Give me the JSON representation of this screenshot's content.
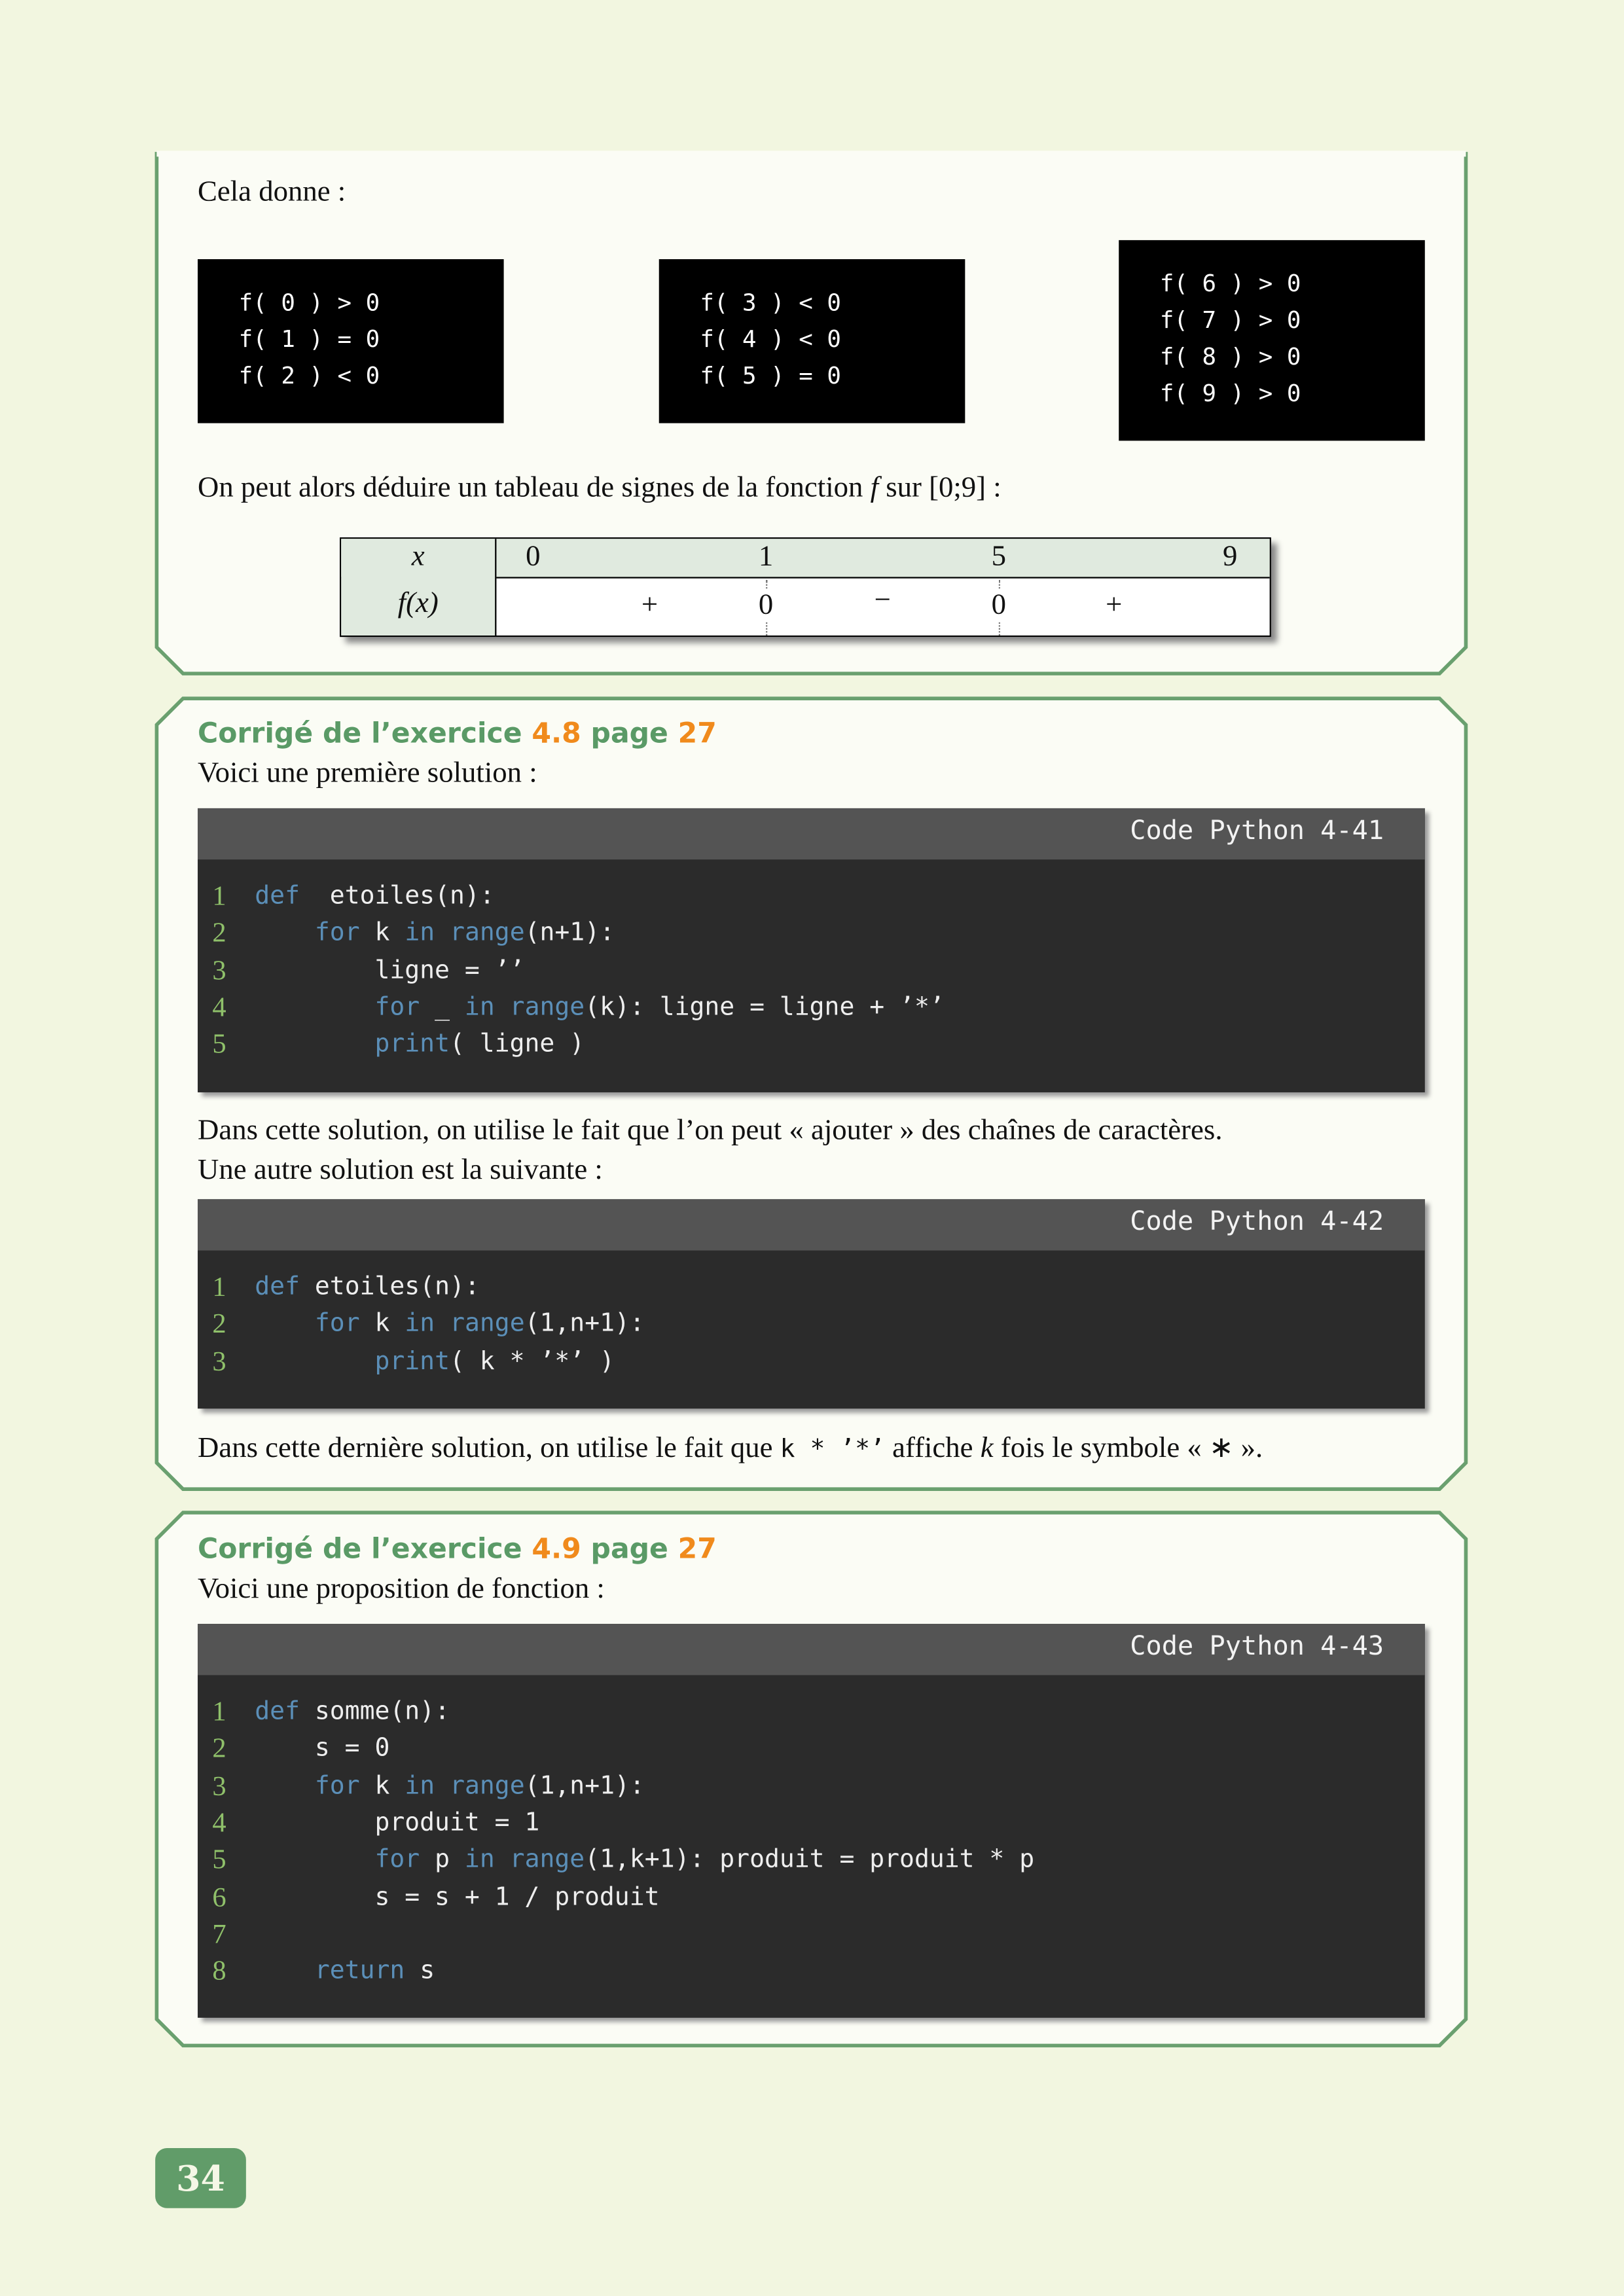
{
  "colors": {
    "background": "#f2f6e0",
    "box_border": "#6aa06f",
    "title_green": "#5a9a66",
    "title_orange": "#f08a1c",
    "code_bg": "#2b2b2b",
    "code_header": "#545454",
    "keyword": "#5b8fb8",
    "line_number": "#8fc06a"
  },
  "section1": {
    "intro": "Cela donne :",
    "outputs": [
      [
        "f( 0 ) > 0",
        "f( 1 ) = 0",
        "f( 2 ) < 0"
      ],
      [
        "f( 3 ) < 0",
        "f( 4 ) < 0",
        "f( 5 ) = 0"
      ],
      [
        "f( 6 ) > 0",
        "f( 7 ) > 0",
        "f( 8 ) > 0",
        "f( 9 ) > 0"
      ]
    ],
    "sentence_pre": "On peut alors déduire un tableau de signes de la fonction ",
    "sentence_f": "f",
    "sentence_post": " sur [0;9] :",
    "table": {
      "x_label": "x",
      "fx_label": "f(x)",
      "x_values": [
        "0",
        "1",
        "5",
        "9"
      ],
      "signs": [
        "+",
        "0",
        "−",
        "0",
        "+"
      ]
    }
  },
  "section2": {
    "title_pre": "Corrigé de l’exercice ",
    "exercise": "4.8",
    "title_mid": " page ",
    "page": "27",
    "intro": "Voici une première solution :",
    "code1": {
      "header": "Code Python 4-41",
      "lines": [
        [
          [
            "kw",
            "def"
          ],
          [
            "",
            "  etoiles(n):"
          ]
        ],
        [
          [
            "",
            "    "
          ],
          [
            "kw",
            "for"
          ],
          [
            "",
            " k "
          ],
          [
            "kw",
            "in"
          ],
          [
            "",
            " "
          ],
          [
            "kw",
            "range"
          ],
          [
            "",
            "(n+1):"
          ]
        ],
        [
          [
            "",
            "        ligne = ’’"
          ]
        ],
        [
          [
            "",
            "        "
          ],
          [
            "kw",
            "for"
          ],
          [
            "",
            " _ "
          ],
          [
            "kw",
            "in"
          ],
          [
            "",
            " "
          ],
          [
            "kw",
            "range"
          ],
          [
            "",
            "(k): ligne = ligne + ’*’"
          ]
        ],
        [
          [
            "",
            "        "
          ],
          [
            "kw",
            "print"
          ],
          [
            "",
            "( ligne )"
          ]
        ]
      ]
    },
    "text1": "Dans cette solution, on utilise le fait que l’on peut « ajouter » des chaînes de caractères.",
    "text2": "Une autre solution est la suivante :",
    "code2": {
      "header": "Code Python 4-42",
      "lines": [
        [
          [
            "kw",
            "def"
          ],
          [
            "",
            " etoiles(n):"
          ]
        ],
        [
          [
            "",
            "    "
          ],
          [
            "kw",
            "for"
          ],
          [
            "",
            " k "
          ],
          [
            "kw",
            "in"
          ],
          [
            "",
            " "
          ],
          [
            "kw",
            "range"
          ],
          [
            "",
            "(1,n+1):"
          ]
        ],
        [
          [
            "",
            "        "
          ],
          [
            "kw",
            "print"
          ],
          [
            "",
            "( k * ’*’ )"
          ]
        ]
      ]
    },
    "text3_pre": "Dans cette dernière solution, on utilise le fait que ",
    "text3_code": "k * ’*’",
    "text3_mid": " affiche ",
    "text3_k": "k",
    "text3_post": " fois le symbole « ∗ »."
  },
  "section3": {
    "title_pre": "Corrigé de l’exercice ",
    "exercise": "4.9",
    "title_mid": " page ",
    "page": "27",
    "intro": "Voici une proposition de fonction :",
    "code": {
      "header": "Code Python 4-43",
      "lines": [
        [
          [
            "kw",
            "def"
          ],
          [
            "",
            " somme(n):"
          ]
        ],
        [
          [
            "",
            "    s = 0"
          ]
        ],
        [
          [
            "",
            "    "
          ],
          [
            "kw",
            "for"
          ],
          [
            "",
            " k "
          ],
          [
            "kw",
            "in"
          ],
          [
            "",
            " "
          ],
          [
            "kw",
            "range"
          ],
          [
            "",
            "(1,n+1):"
          ]
        ],
        [
          [
            "",
            "        produit = 1"
          ]
        ],
        [
          [
            "",
            "        "
          ],
          [
            "kw",
            "for"
          ],
          [
            "",
            " p "
          ],
          [
            "kw",
            "in"
          ],
          [
            "",
            " "
          ],
          [
            "kw",
            "range"
          ],
          [
            "",
            "(1,k+1): produit = produit * p"
          ]
        ],
        [
          [
            "",
            "        s = s + 1 / produit"
          ]
        ],
        [],
        [
          [
            "",
            "    "
          ],
          [
            "kw",
            "return"
          ],
          [
            "",
            " s"
          ]
        ]
      ]
    }
  },
  "page_number": "34"
}
